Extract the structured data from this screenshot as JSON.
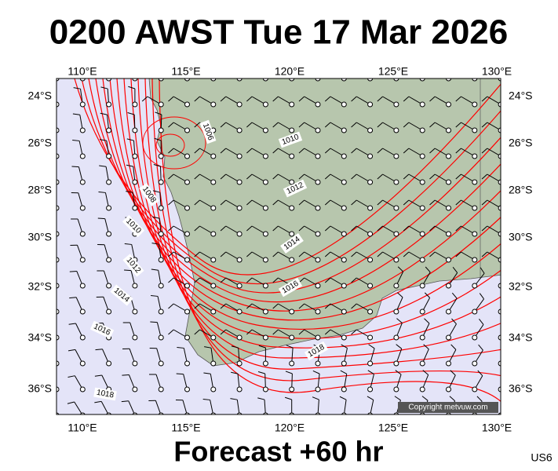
{
  "header": {
    "title": "0200 AWST Tue 17 Mar 2026"
  },
  "map": {
    "lon_labels": [
      "110°E",
      "115°E",
      "120°E",
      "125°E",
      "130°E"
    ],
    "lat_labels": [
      "24°S",
      "26°S",
      "28°S",
      "30°S",
      "32°S",
      "34°S",
      "36°S"
    ],
    "isobar_labels": [
      "1006",
      "1010",
      "1012",
      "1008",
      "1010",
      "1014",
      "1012",
      "1014",
      "1016",
      "1016",
      "1018",
      "1018"
    ],
    "copyright": "Copyright metvuw.com"
  },
  "footer": {
    "label": "Forecast +60 hr",
    "code": "US6"
  }
}
